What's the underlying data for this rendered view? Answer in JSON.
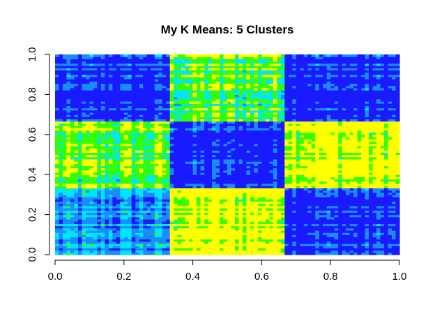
{
  "chart_data": {
    "type": "heatmap",
    "title": "My K Means: 5 Clusters",
    "xlabel": "",
    "ylabel": "",
    "xlim": [
      0.0,
      1.0
    ],
    "ylim": [
      0.0,
      1.0
    ],
    "x_ticks": [
      "0.0",
      "0.2",
      "0.4",
      "0.6",
      "0.8",
      "1.0"
    ],
    "y_ticks": [
      "0.0",
      "0.2",
      "0.4",
      "0.6",
      "0.8",
      "1.0"
    ],
    "block_boundaries": [
      0.0,
      0.33,
      0.665,
      1.0
    ],
    "palette": [
      "#1a1aff",
      "#1a8cff",
      "#00e5ff",
      "#33ff00",
      "#ffff00"
    ],
    "block_dominant_color_index": [
      [
        1,
        4,
        0
      ],
      [
        3,
        0,
        4
      ],
      [
        0,
        3,
        0
      ]
    ],
    "grid": false,
    "legend": "none"
  }
}
